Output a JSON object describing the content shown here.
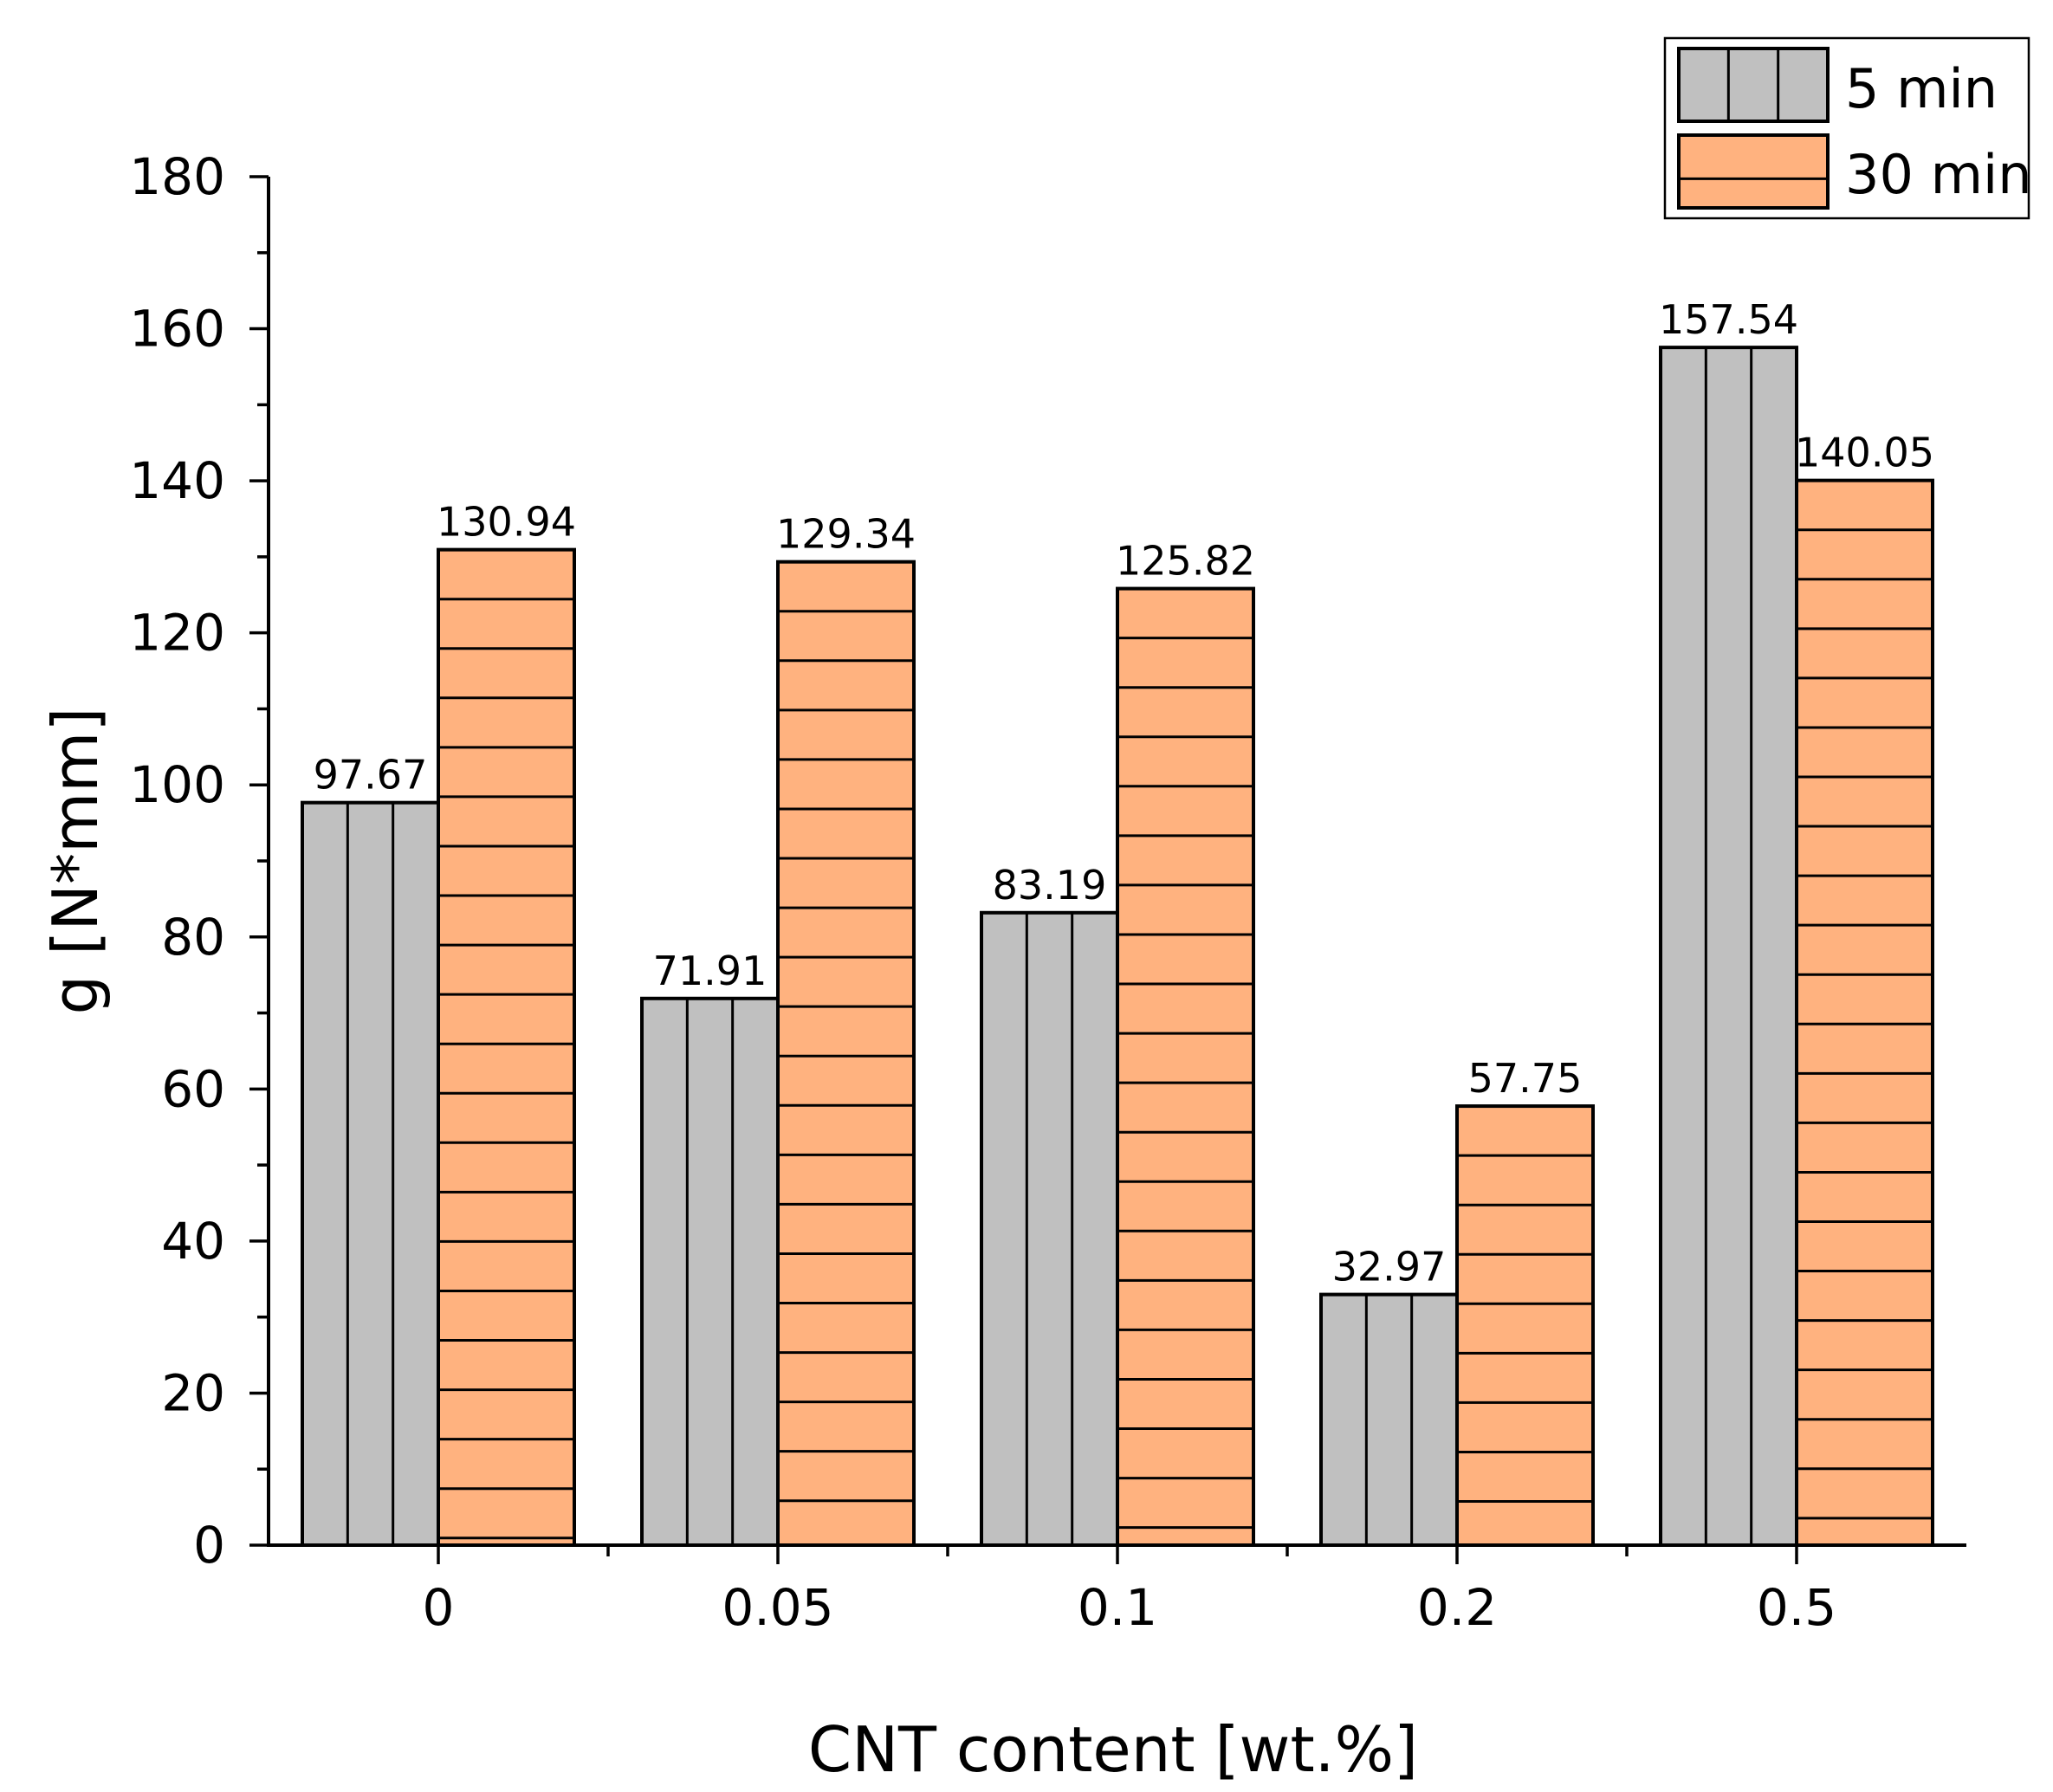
{
  "chart_data": {
    "type": "bar",
    "title": "",
    "xlabel": "CNT content [wt.%]",
    "ylabel": "g [N*mm]",
    "categories": [
      "0",
      "0.05",
      "0.1",
      "0.2",
      "0.5"
    ],
    "ylim": [
      0,
      180
    ],
    "yticks": [
      0,
      20,
      40,
      60,
      80,
      100,
      120,
      140,
      160,
      180
    ],
    "ytick_labels": [
      "0",
      "20",
      "40",
      "60",
      "80",
      "100",
      "120",
      "140",
      "160",
      "180"
    ],
    "grid": false,
    "legend_position": "top-right",
    "series": [
      {
        "name": "5 min",
        "values": [
          97.67,
          71.91,
          83.19,
          32.97,
          157.54
        ],
        "labels": [
          "97.67",
          "71.91",
          "83.19",
          "32.97",
          "157.54"
        ],
        "color": "#c0c0c0",
        "pattern": "vertical-lines"
      },
      {
        "name": "30 min",
        "values": [
          130.94,
          129.34,
          125.82,
          57.75,
          140.05
        ],
        "labels": [
          "130.94",
          "129.34",
          "125.82",
          "57.75",
          "140.05"
        ],
        "color": "#ffb27f",
        "pattern": "horizontal-lines"
      }
    ]
  }
}
